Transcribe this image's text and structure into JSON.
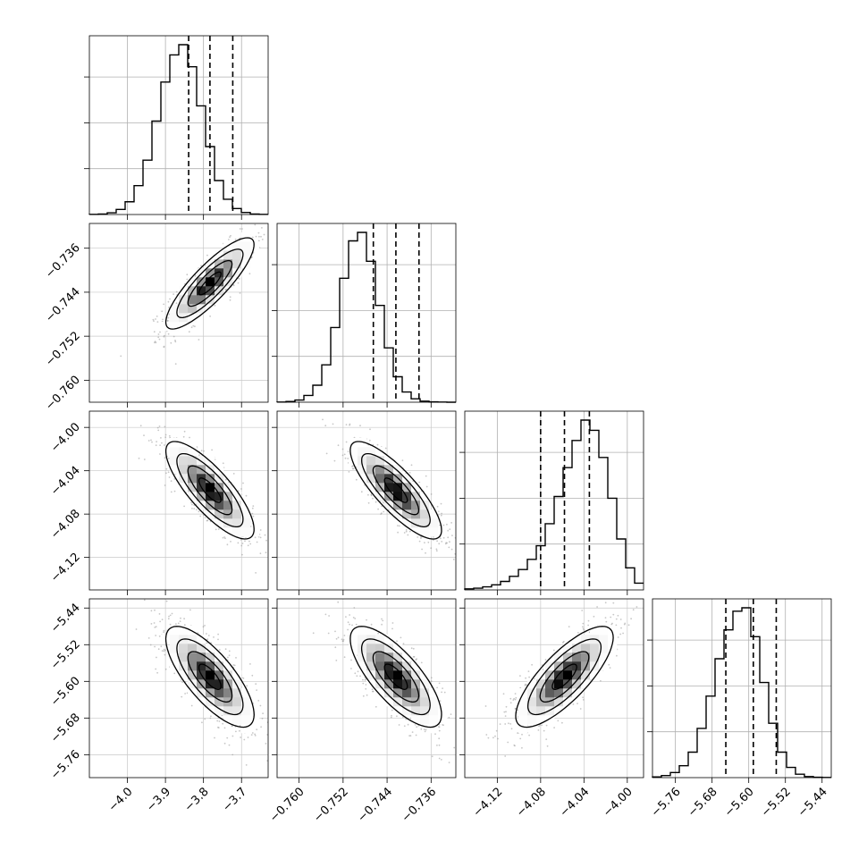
{
  "chart_data": {
    "type": "corner",
    "title": "",
    "n_params": 4,
    "ranges": [
      [
        -4.1,
        -3.63
      ],
      [
        -0.764,
        -0.7315
      ],
      [
        -4.15,
        -3.985
      ],
      [
        -5.81,
        -5.42
      ]
    ],
    "quantile_lines": [
      [
        -3.839,
        -3.783,
        -3.723
      ],
      [
        -0.7465,
        -0.7424,
        -0.7382
      ],
      [
        -4.08,
        -4.058,
        -4.035
      ],
      [
        -5.65,
        -5.59,
        -5.54
      ]
    ],
    "diag_ticks": [
      [
        -4.0,
        -3.9,
        -3.8,
        -3.7
      ],
      [
        -0.76,
        -0.752,
        -0.744,
        -0.736
      ],
      [
        -4.12,
        -4.08,
        -4.04,
        -4.0
      ],
      [
        -5.76,
        -5.68,
        -5.6,
        -5.52,
        -5.44
      ]
    ],
    "x_tick_labels": [
      [
        "−4.0",
        "−3.9",
        "−3.8",
        "−3.7"
      ],
      [
        "−0.760",
        "−0.752",
        "−0.744",
        "−0.736"
      ],
      [
        "−4.12",
        "−4.08",
        "−4.04",
        "−4.00"
      ],
      [
        "−5.76",
        "−5.68",
        "−5.60",
        "−5.52",
        "−5.44"
      ]
    ],
    "y_tick_labels": [
      [],
      [
        "−0.760",
        "−0.752",
        "−0.744",
        "−0.736"
      ],
      [
        "−4.12",
        "−4.08",
        "−4.04",
        "−4.00"
      ],
      [
        "−5.76",
        "−5.68",
        "−5.60",
        "−5.52",
        "−5.44"
      ]
    ],
    "histograms": [
      [
        0.001,
        0.003,
        0.01,
        0.03,
        0.075,
        0.17,
        0.32,
        0.55,
        0.78,
        0.94,
        1.0,
        0.87,
        0.64,
        0.4,
        0.2,
        0.09,
        0.035,
        0.012,
        0.003,
        0.001
      ],
      [
        0.001,
        0.004,
        0.013,
        0.04,
        0.1,
        0.22,
        0.44,
        0.73,
        0.95,
        1.0,
        0.83,
        0.57,
        0.32,
        0.15,
        0.06,
        0.02,
        0.006,
        0.002,
        0.001,
        0.0
      ],
      [
        0.006,
        0.01,
        0.018,
        0.03,
        0.05,
        0.08,
        0.12,
        0.18,
        0.26,
        0.39,
        0.55,
        0.72,
        0.88,
        1.0,
        0.94,
        0.78,
        0.54,
        0.3,
        0.13,
        0.04
      ],
      [
        0.004,
        0.012,
        0.03,
        0.07,
        0.15,
        0.29,
        0.48,
        0.7,
        0.87,
        0.98,
        1.0,
        0.83,
        0.56,
        0.32,
        0.15,
        0.06,
        0.02,
        0.006,
        0.002,
        0.001
      ]
    ],
    "correlations": {
      "1-0": 0.85,
      "2-0": -0.8,
      "2-1": -0.82,
      "3-0": -0.75,
      "3-1": -0.75,
      "3-2": 0.78
    },
    "contour_levels": [
      0.5,
      1.0,
      1.5,
      2.0
    ],
    "grid": true,
    "hist_line_color": "#000000",
    "scatter_color": "#999999",
    "density_colormap": [
      "#ffffff",
      "#000000"
    ]
  }
}
